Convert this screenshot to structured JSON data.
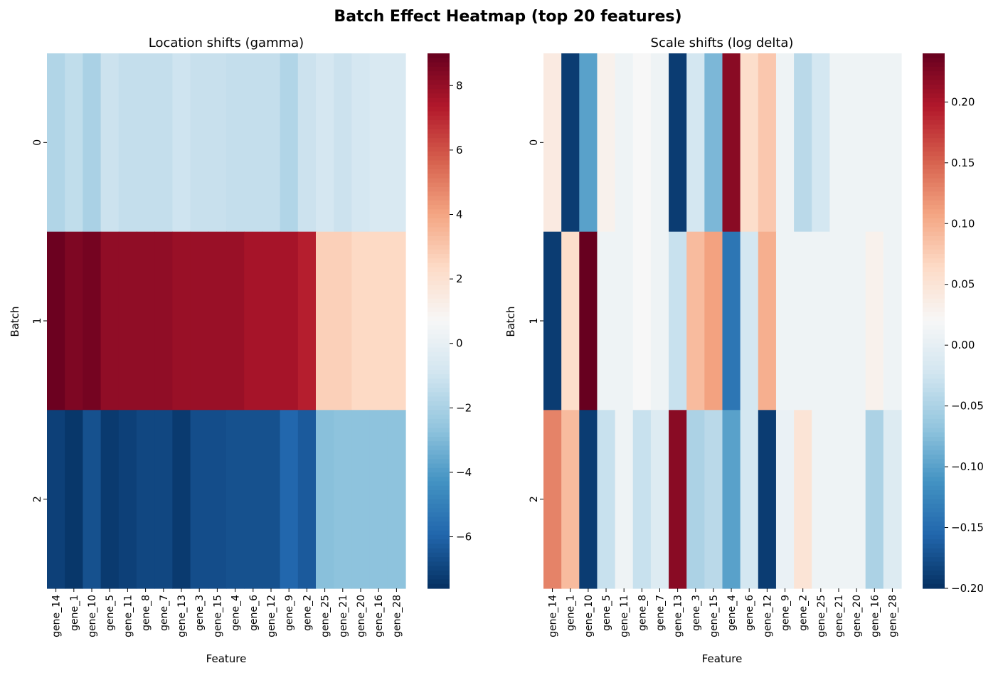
{
  "title": "Batch Effect Heatmap (top 20 features)",
  "colormap": [
    "#053061",
    "#2166ac",
    "#4393c3",
    "#92c5de",
    "#d1e5f0",
    "#f7f7f7",
    "#fddbc7",
    "#f4a582",
    "#d6604d",
    "#b2182b",
    "#67001f"
  ],
  "chart_data": [
    {
      "type": "heatmap",
      "title": "Location shifts (gamma)",
      "xlabel": "Feature",
      "ylabel": "Batch",
      "rows": [
        "0",
        "1",
        "2"
      ],
      "columns": [
        "gene_14",
        "gene_1",
        "gene_10",
        "gene_5",
        "gene_11",
        "gene_8",
        "gene_7",
        "gene_13",
        "gene_3",
        "gene_15",
        "gene_4",
        "gene_6",
        "gene_12",
        "gene_9",
        "gene_2",
        "gene_25",
        "gene_21",
        "gene_20",
        "gene_16",
        "gene_28"
      ],
      "values": [
        [
          -1.8,
          -1.4,
          -2.0,
          -1.1,
          -1.3,
          -1.3,
          -1.3,
          -1.0,
          -1.2,
          -1.2,
          -1.3,
          -1.3,
          -1.3,
          -1.8,
          -1.1,
          -0.8,
          -1.1,
          -0.8,
          -0.6,
          -0.6
        ],
        [
          8.9,
          8.5,
          8.7,
          8.1,
          8.1,
          8.1,
          8.1,
          7.9,
          7.9,
          7.9,
          7.9,
          7.6,
          7.6,
          7.6,
          7.2,
          2.7,
          2.7,
          2.4,
          2.4,
          2.4
        ],
        [
          -7.1,
          -7.4,
          -6.6,
          -7.3,
          -7.1,
          -6.9,
          -6.9,
          -7.3,
          -6.7,
          -6.7,
          -6.6,
          -6.6,
          -6.6,
          -5.9,
          -6.3,
          -2.8,
          -2.7,
          -2.7,
          -2.7,
          -2.7
        ]
      ],
      "vmin": -7.6,
      "vmax": 9.0,
      "colorbar_ticks": [
        -6,
        -4,
        -2,
        0,
        2,
        4,
        6,
        8
      ]
    },
    {
      "type": "heatmap",
      "title": "Scale shifts (log delta)",
      "xlabel": "Feature",
      "ylabel": "Batch",
      "rows": [
        "0",
        "1",
        "2"
      ],
      "columns": [
        "gene_14",
        "gene_1",
        "gene_10",
        "gene_5",
        "gene_11",
        "gene_8",
        "gene_7",
        "gene_13",
        "gene_3",
        "gene_15",
        "gene_4",
        "gene_6",
        "gene_12",
        "gene_9",
        "gene_2",
        "gene_25",
        "gene_21",
        "gene_20",
        "gene_16",
        "gene_28"
      ],
      "values": [
        [
          0.04,
          -0.19,
          -0.1,
          0.03,
          0.01,
          0.02,
          0.01,
          -0.19,
          -0.02,
          -0.08,
          0.22,
          0.06,
          0.08,
          0.01,
          -0.04,
          -0.02,
          0.01,
          0.01,
          0.01,
          0.01
        ],
        [
          -0.19,
          0.06,
          0.24,
          0.01,
          0.01,
          0.02,
          0.01,
          -0.03,
          0.09,
          0.11,
          -0.14,
          -0.02,
          0.1,
          0.01,
          0.01,
          0.01,
          0.01,
          0.01,
          0.03,
          0.01
        ],
        [
          0.13,
          0.09,
          -0.19,
          -0.03,
          0.01,
          -0.03,
          -0.01,
          0.22,
          -0.05,
          -0.04,
          -0.1,
          -0.02,
          -0.19,
          0.005,
          0.05,
          0.01,
          0.01,
          0.01,
          -0.05,
          -0.01
        ]
      ],
      "vmin": -0.2,
      "vmax": 0.24,
      "colorbar_ticks": [
        -0.2,
        -0.15,
        -0.1,
        -0.05,
        0.0,
        0.05,
        0.1,
        0.15,
        0.2
      ]
    }
  ]
}
